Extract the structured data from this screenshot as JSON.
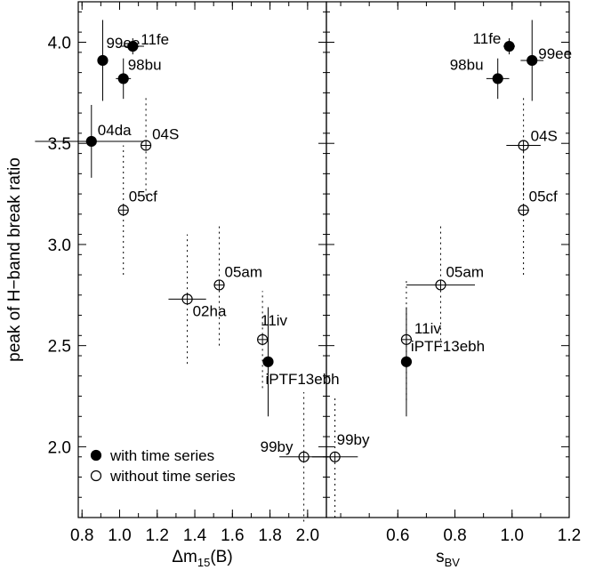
{
  "chart_data": [
    {
      "panel": "left",
      "type": "scatter",
      "xlabel_prefix": "Δm",
      "xlabel_sub": "15",
      "xlabel_suffix": "(B)",
      "ylabel": "peak of H−band break ratio",
      "xlim": [
        0.78,
        2.1
      ],
      "ylim": [
        1.65,
        4.2
      ],
      "xticks": [
        0.8,
        1.0,
        1.2,
        1.4,
        1.6,
        1.8,
        2.0
      ],
      "xticklabels": [
        "0.8",
        "1.0",
        "1.2",
        "1.4",
        "1.6",
        "1.8",
        "2.0"
      ],
      "yticks": [
        2.0,
        2.5,
        3.0,
        3.5,
        4.0
      ],
      "yticklabels": [
        "2.0",
        "2.5",
        "3.0",
        "3.5",
        "4.0"
      ],
      "points": [
        {
          "label": "99ee",
          "x": 0.91,
          "y": 3.91,
          "xerr": 0.0,
          "yerr": 0.2,
          "filled": true
        },
        {
          "label": "11fe",
          "x": 1.07,
          "y": 3.98,
          "xerr": 0.06,
          "yerr": 0.04,
          "filled": true
        },
        {
          "label": "98bu",
          "x": 1.02,
          "y": 3.82,
          "xerr": 0.04,
          "yerr": 0.1,
          "filled": true
        },
        {
          "label": "04da",
          "x": 0.85,
          "y": 3.51,
          "xerr": 0.3,
          "yerr": 0.18,
          "filled": true
        },
        {
          "label": "04S",
          "x": 1.14,
          "y": 3.49,
          "xerr": 0.0,
          "yerr": 0.25,
          "filled": false
        },
        {
          "label": "05cf",
          "x": 1.02,
          "y": 3.17,
          "xerr": 0.0,
          "yerr": 0.32,
          "filled": false
        },
        {
          "label": "05am",
          "x": 1.53,
          "y": 2.8,
          "xerr": 0.0,
          "yerr": 0.3,
          "filled": false
        },
        {
          "label": "02ha",
          "x": 1.36,
          "y": 2.73,
          "xerr": 0.1,
          "yerr": 0.32,
          "filled": false
        },
        {
          "label": "11iv",
          "x": 1.76,
          "y": 2.53,
          "xerr": 0.0,
          "yerr": 0.24,
          "filled": false
        },
        {
          "label": "iPTF13ebh",
          "x": 1.79,
          "y": 2.42,
          "xerr": 0.0,
          "yerr": 0.27,
          "filled": true
        },
        {
          "label": "99by",
          "x": 1.98,
          "y": 1.95,
          "xerr": 0.13,
          "yerr": 0.32,
          "filled": false
        }
      ],
      "legend": [
        {
          "label": "with time series",
          "filled": true
        },
        {
          "label": "without time series",
          "filled": false
        }
      ]
    },
    {
      "panel": "right",
      "type": "scatter",
      "xlabel_prefix": "s",
      "xlabel_sub": "BV",
      "xlabel_suffix": "",
      "xlim": [
        0.35,
        1.2
      ],
      "ylim": [
        1.65,
        4.2
      ],
      "xticks": [
        0.6,
        0.8,
        1.0,
        1.2
      ],
      "xticklabels": [
        "0.6",
        "0.8",
        "1.0",
        "1.2"
      ],
      "yticks": [
        2.0,
        2.5,
        3.0,
        3.5,
        4.0
      ],
      "points": [
        {
          "label": "11fe",
          "x": 0.99,
          "y": 3.98,
          "xerr": 0.02,
          "yerr": 0.04,
          "filled": true
        },
        {
          "label": "99ee",
          "x": 1.07,
          "y": 3.91,
          "xerr": 0.04,
          "yerr": 0.2,
          "filled": true
        },
        {
          "label": "98bu",
          "x": 0.95,
          "y": 3.82,
          "xerr": 0.04,
          "yerr": 0.1,
          "filled": true
        },
        {
          "label": "04S",
          "x": 1.04,
          "y": 3.49,
          "xerr": 0.06,
          "yerr": 0.25,
          "filled": false
        },
        {
          "label": "05cf",
          "x": 1.04,
          "y": 3.17,
          "xerr": 0.02,
          "yerr": 0.32,
          "filled": false
        },
        {
          "label": "05am",
          "x": 0.75,
          "y": 2.8,
          "xerr": 0.12,
          "yerr": 0.3,
          "filled": false
        },
        {
          "label": "11iv",
          "x": 0.63,
          "y": 2.53,
          "xerr": 0.0,
          "yerr": 0.3,
          "filled": false
        },
        {
          "label": "iPTF13ebh",
          "x": 0.63,
          "y": 2.42,
          "xerr": 0.0,
          "yerr": 0.27,
          "filled": true
        },
        {
          "label": "99by",
          "x": 0.38,
          "y": 1.95,
          "xerr": 0.08,
          "yerr": 0.3,
          "filled": false
        }
      ]
    }
  ]
}
